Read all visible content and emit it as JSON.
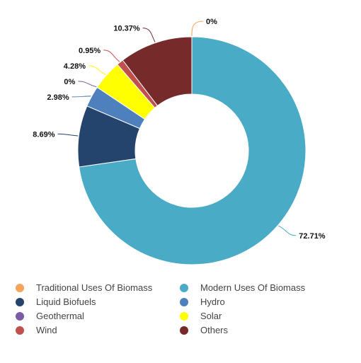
{
  "chart_data": {
    "type": "pie",
    "donut": true,
    "title": "",
    "series": [
      {
        "name": "Traditional Uses Of Biomass",
        "value": 0,
        "label": "0%",
        "color": "#f7a35c"
      },
      {
        "name": "Modern Uses Of Biomass",
        "value": 72.71,
        "label": "72.71%",
        "color": "#4aabc7"
      },
      {
        "name": "Liquid Biofuels",
        "value": 8.69,
        "label": "8.69%",
        "color": "#24446e"
      },
      {
        "name": "Hydro",
        "value": 2.98,
        "label": "2.98%",
        "color": "#4e80bd"
      },
      {
        "name": "Geothermal",
        "value": 0,
        "label": "0%",
        "color": "#7d5ba6"
      },
      {
        "name": "Solar",
        "value": 4.28,
        "label": "4.28%",
        "color": "#ffff00"
      },
      {
        "name": "Wind",
        "value": 0.95,
        "label": "0.95%",
        "color": "#c0504d"
      },
      {
        "name": "Others",
        "value": 10.37,
        "label": "10.37%",
        "color": "#772a2a"
      }
    ],
    "legend_position": "bottom"
  }
}
